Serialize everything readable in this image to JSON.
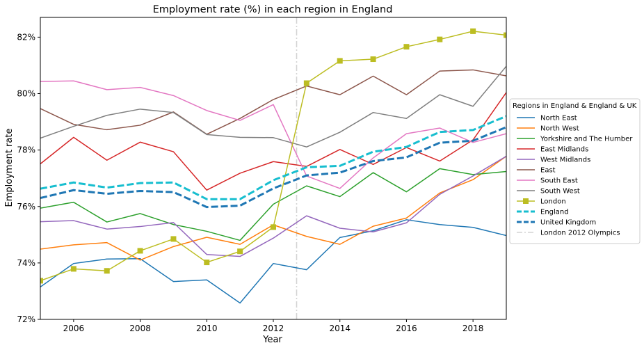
{
  "chart_data": {
    "type": "line",
    "title": "Employment rate (%) in each region in England",
    "xlabel": "Year",
    "ylabel": "Employment rate",
    "xlim": [
      2005,
      2019
    ],
    "ylim": [
      72,
      82.7
    ],
    "x_ticks": [
      2006,
      2008,
      2010,
      2012,
      2014,
      2016,
      2018
    ],
    "x_tick_labels": [
      "2006",
      "2008",
      "2010",
      "2012",
      "2014",
      "2016",
      "2018"
    ],
    "y_ticks": [
      72,
      74,
      76,
      78,
      80,
      82
    ],
    "y_tick_labels": [
      "72%",
      "74%",
      "76%",
      "78%",
      "80%",
      "82%"
    ],
    "grid": false,
    "legend_title": "Regions in England & England & UK",
    "legend_position": "right, outside plot",
    "x": [
      2005,
      2006,
      2007,
      2008,
      2009,
      2010,
      2011,
      2012,
      2013,
      2014,
      2015,
      2016,
      2017,
      2018,
      2019
    ],
    "series": [
      {
        "name": "North East",
        "color": "#1f77b4",
        "style": "solid",
        "values": [
          73.15,
          73.98,
          74.14,
          74.15,
          73.34,
          73.4,
          72.58,
          73.98,
          73.76,
          74.9,
          75.14,
          75.53,
          75.36,
          75.26,
          74.97
        ]
      },
      {
        "name": "North West",
        "color": "#ff7f0e",
        "style": "solid",
        "values": [
          74.49,
          74.64,
          74.72,
          74.1,
          74.58,
          74.91,
          74.66,
          75.35,
          74.94,
          74.66,
          75.3,
          75.59,
          76.48,
          76.95,
          77.78
        ]
      },
      {
        "name": "Yorkshire and The Humber",
        "color": "#2ca02c",
        "style": "solid",
        "values": [
          75.94,
          76.15,
          75.45,
          75.75,
          75.36,
          75.12,
          74.8,
          76.08,
          76.73,
          76.35,
          77.2,
          76.52,
          77.34,
          77.13,
          77.24
        ]
      },
      {
        "name": "East Midlands",
        "color": "#d62728",
        "style": "solid",
        "values": [
          77.51,
          78.45,
          77.64,
          78.28,
          77.94,
          76.58,
          77.18,
          77.59,
          77.42,
          78.02,
          77.49,
          78.09,
          77.61,
          78.36,
          80.04
        ]
      },
      {
        "name": "West Midlands",
        "color": "#9467bd",
        "style": "solid",
        "values": [
          75.46,
          75.5,
          75.2,
          75.29,
          75.43,
          74.3,
          74.23,
          74.88,
          75.67,
          75.23,
          75.1,
          75.42,
          76.43,
          77.08,
          77.78
        ]
      },
      {
        "name": "East",
        "color": "#8c564b",
        "style": "solid",
        "values": [
          79.47,
          78.91,
          78.72,
          78.88,
          79.35,
          78.56,
          79.12,
          79.79,
          80.27,
          79.96,
          80.62,
          79.96,
          80.8,
          80.84,
          80.63
        ]
      },
      {
        "name": "South East",
        "color": "#e377c2",
        "style": "solid",
        "values": [
          80.43,
          80.45,
          80.14,
          80.22,
          79.93,
          79.4,
          79.05,
          79.61,
          77.08,
          76.64,
          77.72,
          78.58,
          78.78,
          78.27,
          78.58
        ]
      },
      {
        "name": "South West",
        "color": "#7f7f7f",
        "style": "solid",
        "values": [
          78.42,
          78.84,
          79.23,
          79.45,
          79.33,
          78.55,
          78.45,
          78.44,
          78.11,
          78.63,
          79.33,
          79.12,
          79.96,
          79.55,
          80.97
        ]
      },
      {
        "name": "London",
        "color": "#bcbd22",
        "style": "solid",
        "marker": "square",
        "values": [
          73.37,
          73.79,
          73.72,
          74.43,
          74.85,
          74.02,
          74.41,
          75.27,
          80.37,
          81.16,
          81.22,
          81.66,
          81.92,
          82.21,
          82.07
        ]
      },
      {
        "name": "England",
        "color": "#17becf",
        "style": "dashed",
        "values": [
          76.63,
          76.85,
          76.67,
          76.83,
          76.85,
          76.26,
          76.26,
          76.93,
          77.39,
          77.44,
          77.94,
          78.11,
          78.64,
          78.71,
          79.2
        ]
      },
      {
        "name": "United Kingdom",
        "color": "#1f77b4",
        "style": "dashed",
        "values": [
          76.3,
          76.58,
          76.45,
          76.55,
          76.51,
          75.98,
          76.03,
          76.64,
          77.1,
          77.2,
          77.61,
          77.74,
          78.26,
          78.33,
          78.81
        ]
      }
    ],
    "annotations": [
      {
        "name": "London 2012 Olympics",
        "type": "vertical_line",
        "x": 2012.7,
        "color": "#d3d3d3",
        "style": "dashdot"
      }
    ]
  }
}
